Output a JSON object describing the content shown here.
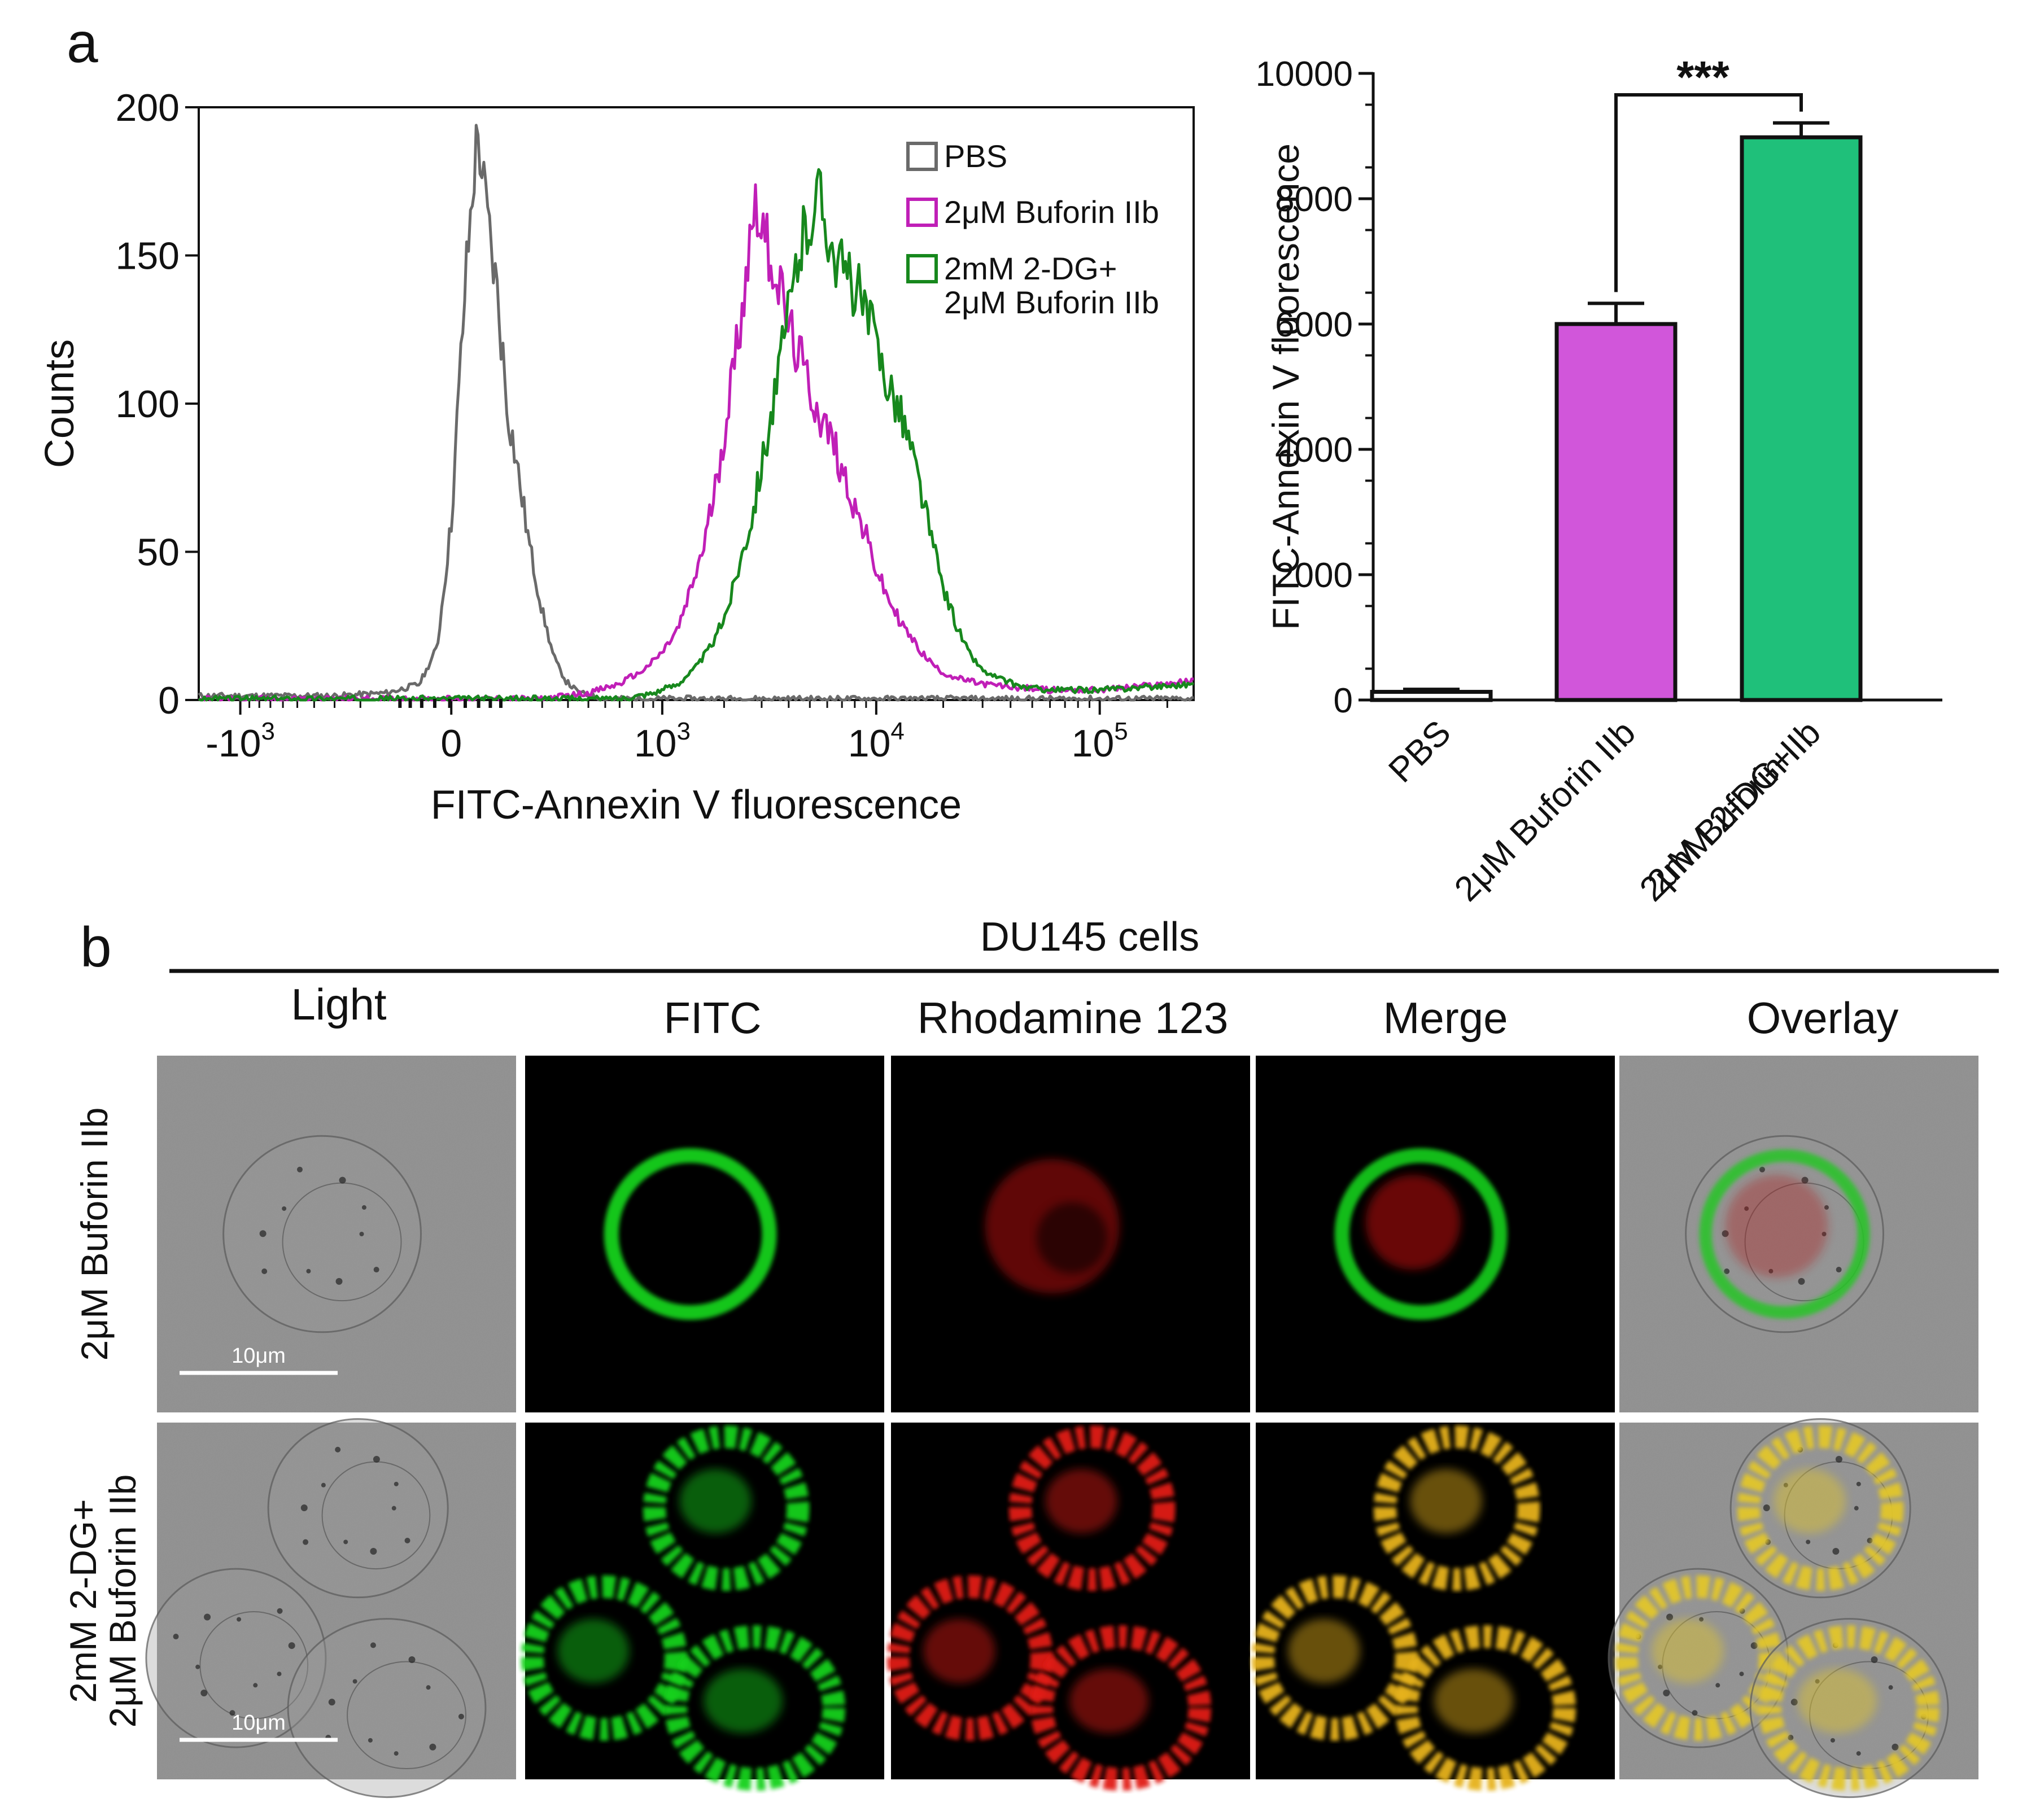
{
  "panel_labels": {
    "a": "a",
    "b": "b"
  },
  "colors": {
    "pbs": "#6a6a6a",
    "buforin": "#c01fb7",
    "combo": "#17881d",
    "bar_buforin": "#d156da",
    "bar_combo": "#1fc07a",
    "bar_pbs": "#ffffff"
  },
  "chart_data": [
    {
      "type": "line",
      "subtype": "flow-cytometry-histogram",
      "title": "",
      "xlabel": "FITC-Annexin V fluorescence",
      "ylabel": "Counts",
      "x_scale": "biexponential (log above 10^3, linear near 0)",
      "ylim": [
        0,
        200
      ],
      "y_ticks": [
        0,
        50,
        100,
        150,
        200
      ],
      "x_ticks": [
        {
          "base": "-10",
          "exp": "3"
        },
        {
          "base": "0",
          "exp": ""
        },
        {
          "base": "10",
          "exp": "3"
        },
        {
          "base": "10",
          "exp": "4"
        },
        {
          "base": "10",
          "exp": "5"
        }
      ],
      "legend": {
        "placement": "top-right",
        "entries": [
          {
            "lines": [
              "PBS"
            ]
          },
          {
            "lines": [
              "2μM Buforin IIb"
            ]
          },
          {
            "lines": [
              "2mM 2-DG+",
              "2μM Buforin IIb"
            ]
          }
        ]
      },
      "series": [
        {
          "name": "PBS",
          "color": "#6a6a6a",
          "x": [
            -700,
            -300,
            -120,
            -50,
            -20,
            0,
            20,
            40,
            60,
            80,
            100,
            130,
            160,
            200,
            240,
            290,
            350,
            420,
            500,
            700,
            1000,
            10000,
            100000,
            262000
          ],
          "y": [
            1,
            1,
            2,
            5,
            18,
            60,
            140,
            192,
            160,
            135,
            100,
            75,
            52,
            30,
            15,
            6,
            2,
            1,
            0,
            0,
            0,
            0,
            0,
            0
          ]
        },
        {
          "name": "2μM Buforin IIb",
          "color": "#c01fb7",
          "x": [
            -1000,
            200,
            400,
            600,
            800,
            1000,
            1200,
            1400,
            1600,
            1800,
            2000,
            2200,
            2400,
            2600,
            2800,
            3000,
            3300,
            3600,
            4000,
            4500,
            5000,
            5600,
            6300,
            7000,
            8000,
            9000,
            10000,
            11000,
            12500,
            14000,
            16000,
            18000,
            20000,
            23000,
            26000,
            30000,
            40000,
            60000,
            100000,
            262000
          ],
          "y": [
            0,
            0,
            2,
            5,
            10,
            16,
            24,
            38,
            52,
            70,
            90,
            110,
            130,
            150,
            170,
            160,
            150,
            140,
            125,
            115,
            105,
            95,
            88,
            78,
            65,
            55,
            44,
            36,
            28,
            22,
            16,
            12,
            9,
            7,
            6,
            5,
            4,
            3,
            3,
            6
          ]
        },
        {
          "name": "2mM 2-DG+ 2μM Buforin IIb",
          "color": "#17881d",
          "x": [
            -1000,
            600,
            900,
            1200,
            1500,
            1800,
            2100,
            2400,
            2700,
            3000,
            3400,
            3800,
            4200,
            4600,
            5000,
            5500,
            6000,
            6500,
            7000,
            8000,
            9000,
            10000,
            11000,
            12500,
            14000,
            16000,
            18000,
            20000,
            23000,
            26000,
            30000,
            35000,
            45000,
            60000,
            100000,
            262000
          ],
          "y": [
            0,
            0,
            2,
            5,
            12,
            20,
            32,
            48,
            62,
            80,
            100,
            120,
            140,
            155,
            162,
            172,
            160,
            150,
            145,
            140,
            130,
            120,
            110,
            100,
            88,
            70,
            52,
            38,
            25,
            16,
            10,
            7,
            4,
            3,
            3,
            5
          ]
        }
      ]
    },
    {
      "type": "bar",
      "title": "",
      "xlabel": "",
      "ylabel": "FITC-Annexin V fluorescence",
      "ylim": [
        0,
        10000
      ],
      "y_ticks": [
        0,
        2000,
        4000,
        6000,
        8000,
        10000
      ],
      "categories": [
        "PBS",
        "2μM Buforin IIb",
        "2mM 2-DG+ 2μM Buforin IIb"
      ],
      "category_lines": [
        [
          "PBS"
        ],
        [
          "2μM Buforin IIb"
        ],
        [
          "2mM 2-DG+",
          "2μM Buforin IIb"
        ]
      ],
      "values": [
        130,
        6000,
        8980
      ],
      "errors": [
        40,
        330,
        230
      ],
      "colors": [
        "#ffffff",
        "#d156da",
        "#1fc07a"
      ],
      "significance": {
        "between": [
          1,
          2
        ],
        "label": "***"
      }
    }
  ],
  "microscopy": {
    "title": "DU145 cells",
    "columns": [
      "Light",
      "FITC",
      "Rhodamine 123",
      "Merge",
      "Overlay"
    ],
    "rows": [
      {
        "label_lines": [
          "2μM Buforin IIb"
        ],
        "scale_bar": "10μm"
      },
      {
        "label_lines": [
          "2mM 2-DG+",
          "2μM Buforin IIb"
        ],
        "scale_bar": "10μm"
      }
    ]
  }
}
